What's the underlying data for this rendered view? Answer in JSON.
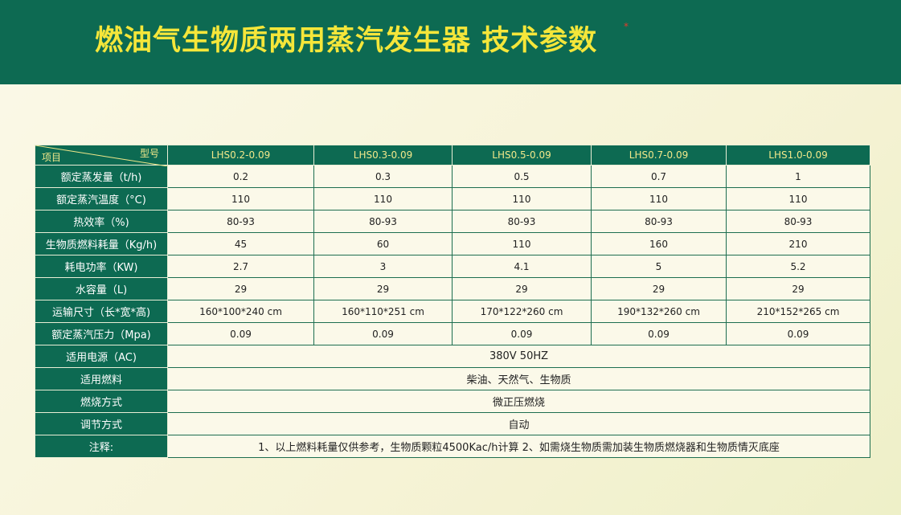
{
  "header": {
    "title": "燃油气生物质两用蒸汽发生器 技术参数",
    "mark": "*"
  },
  "table": {
    "corner": {
      "top": "型号",
      "bottom": "项目"
    },
    "models": [
      "LHS0.2-0.09",
      "LHS0.3-0.09",
      "LHS0.5-0.09",
      "LHS0.7-0.09",
      "LHS1.0-0.09"
    ],
    "rows": [
      {
        "label": "额定蒸发量（t/h)",
        "values": [
          "0.2",
          "0.3",
          "0.5",
          "0.7",
          "1"
        ]
      },
      {
        "label": "额定蒸汽温度（°C)",
        "values": [
          "110",
          "110",
          "110",
          "110",
          "110"
        ]
      },
      {
        "label": "热效率（%)",
        "values": [
          "80-93",
          "80-93",
          "80-93",
          "80-93",
          "80-93"
        ]
      },
      {
        "label": "生物质燃料耗量（Kg/h)",
        "values": [
          "45",
          "60",
          "110",
          "160",
          "210"
        ]
      },
      {
        "label": "耗电功率（KW)",
        "values": [
          "2.7",
          "3",
          "4.1",
          "5",
          "5.2"
        ]
      },
      {
        "label": "水容量（L)",
        "values": [
          "29",
          "29",
          "29",
          "29",
          "29"
        ]
      },
      {
        "label": "运输尺寸（长*宽*高)",
        "values": [
          "160*100*240 cm",
          "160*110*251 cm",
          "170*122*260 cm",
          "190*132*260 cm",
          "210*152*265 cm"
        ]
      },
      {
        "label": "额定蒸汽压力（Mpa)",
        "values": [
          "0.09",
          "0.09",
          "0.09",
          "0.09",
          "0.09"
        ]
      },
      {
        "label": "适用电源（AC)",
        "values": [
          "380V 50HZ"
        ]
      },
      {
        "label": "适用燃料",
        "values": [
          "柴油、天然气、生物质"
        ]
      },
      {
        "label": "燃烧方式",
        "values": [
          "微正压燃烧"
        ]
      },
      {
        "label": "调节方式",
        "values": [
          "自动"
        ]
      },
      {
        "label": "注释:",
        "values": [
          "1、以上燃料耗量仅供参考，生物质颗粒4500Kac/h计算   2、如需烧生物质需加装生物质燃烧器和生物质情灭底座"
        ]
      }
    ]
  }
}
